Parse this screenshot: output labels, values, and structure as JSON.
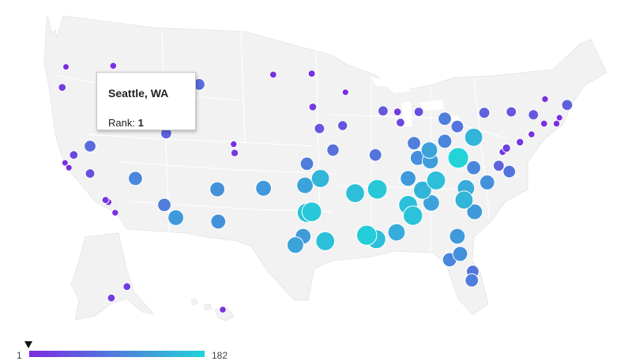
{
  "tooltip": {
    "city": "Seattle, WA",
    "rank_label": "Rank:",
    "rank_value": "1"
  },
  "legend": {
    "min": "1",
    "max": "182",
    "min_color": "#7b2be0",
    "max_color": "#22d3d8"
  },
  "colors": {
    "land": "#f2f2f2",
    "border": "#ffffff",
    "water": "#ffffff"
  },
  "markers": [
    {
      "x": -122.3,
      "y": 47.6,
      "r": 1
    },
    {
      "x": -122.7,
      "y": 45.5,
      "r": 20
    },
    {
      "x": -117.4,
      "y": 47.7,
      "r": 8
    },
    {
      "x": -111.9,
      "y": 40.8,
      "r": 60
    },
    {
      "x": -116.2,
      "y": 43.6,
      "r": 40
    },
    {
      "x": -106.6,
      "y": 35.1,
      "r": 110
    },
    {
      "x": -112.1,
      "y": 33.5,
      "r": 90
    },
    {
      "x": -110.9,
      "y": 32.2,
      "r": 120
    },
    {
      "x": -115.1,
      "y": 36.2,
      "r": 100
    },
    {
      "x": -119.8,
      "y": 39.5,
      "r": 70
    },
    {
      "x": -121.5,
      "y": 38.6,
      "r": 30
    },
    {
      "x": -122.4,
      "y": 37.8,
      "r": 2
    },
    {
      "x": -122.0,
      "y": 37.3,
      "r": 3
    },
    {
      "x": -118.2,
      "y": 34.0,
      "r": 12
    },
    {
      "x": -117.2,
      "y": 32.7,
      "r": 6
    },
    {
      "x": -117.9,
      "y": 33.8,
      "r": 9
    },
    {
      "x": -119.8,
      "y": 36.7,
      "r": 40
    },
    {
      "x": -104.9,
      "y": 39.7,
      "r": 5
    },
    {
      "x": -104.8,
      "y": 38.8,
      "r": 15
    },
    {
      "x": -108.5,
      "y": 45.8,
      "r": 70
    },
    {
      "x": -100.8,
      "y": 46.8,
      "r": 10
    },
    {
      "x": -96.8,
      "y": 46.9,
      "r": 12
    },
    {
      "x": -96.7,
      "y": 43.5,
      "r": 20
    },
    {
      "x": -93.3,
      "y": 45.0,
      "r": 3
    },
    {
      "x": -96.0,
      "y": 41.3,
      "r": 50
    },
    {
      "x": -93.6,
      "y": 41.6,
      "r": 45
    },
    {
      "x": -97.3,
      "y": 37.7,
      "r": 90
    },
    {
      "x": -94.6,
      "y": 39.1,
      "r": 75
    },
    {
      "x": -97.5,
      "y": 35.5,
      "r": 130
    },
    {
      "x": -95.9,
      "y": 36.2,
      "r": 150
    },
    {
      "x": -96.8,
      "y": 32.8,
      "r": 170
    },
    {
      "x": -97.3,
      "y": 32.7,
      "r": 165
    },
    {
      "x": -95.4,
      "y": 29.8,
      "r": 160
    },
    {
      "x": -98.5,
      "y": 29.4,
      "r": 130
    },
    {
      "x": -97.7,
      "y": 30.3,
      "r": 120
    },
    {
      "x": -101.8,
      "y": 35.2,
      "r": 120
    },
    {
      "x": -106.5,
      "y": 31.8,
      "r": 110
    },
    {
      "x": -92.3,
      "y": 34.7,
      "r": 160
    },
    {
      "x": -90.0,
      "y": 35.1,
      "r": 170
    },
    {
      "x": -90.2,
      "y": 38.6,
      "r": 80
    },
    {
      "x": -90.1,
      "y": 30.0,
      "r": 160
    },
    {
      "x": -91.1,
      "y": 30.4,
      "r": 175
    },
    {
      "x": -88.0,
      "y": 30.7,
      "r": 140
    },
    {
      "x": -86.8,
      "y": 33.5,
      "r": 160
    },
    {
      "x": -86.3,
      "y": 32.4,
      "r": 165
    },
    {
      "x": -86.8,
      "y": 36.2,
      "r": 120
    },
    {
      "x": -85.3,
      "y": 35.0,
      "r": 150
    },
    {
      "x": -83.9,
      "y": 36.0,
      "r": 160
    },
    {
      "x": -85.8,
      "y": 38.3,
      "r": 110
    },
    {
      "x": -84.5,
      "y": 38.0,
      "r": 125
    },
    {
      "x": -86.2,
      "y": 39.8,
      "r": 90
    },
    {
      "x": -87.6,
      "y": 41.9,
      "r": 30
    },
    {
      "x": -89.4,
      "y": 43.1,
      "r": 50
    },
    {
      "x": -87.9,
      "y": 43.0,
      "r": 20
    },
    {
      "x": -83.0,
      "y": 42.3,
      "r": 90
    },
    {
      "x": -85.7,
      "y": 43.0,
      "r": 40
    },
    {
      "x": -84.6,
      "y": 39.1,
      "r": 130
    },
    {
      "x": -83.0,
      "y": 40.0,
      "r": 100
    },
    {
      "x": -81.7,
      "y": 41.5,
      "r": 80
    },
    {
      "x": -80.0,
      "y": 40.4,
      "r": 150
    },
    {
      "x": -81.6,
      "y": 38.3,
      "r": 182
    },
    {
      "x": -80.0,
      "y": 37.3,
      "r": 100
    },
    {
      "x": -77.4,
      "y": 37.5,
      "r": 60
    },
    {
      "x": -76.3,
      "y": 36.9,
      "r": 80
    },
    {
      "x": -78.6,
      "y": 35.8,
      "r": 110
    },
    {
      "x": -80.8,
      "y": 35.2,
      "r": 140
    },
    {
      "x": -79.9,
      "y": 32.8,
      "r": 120
    },
    {
      "x": -81.0,
      "y": 34.0,
      "r": 150
    },
    {
      "x": -84.4,
      "y": 33.7,
      "r": 130
    },
    {
      "x": -81.7,
      "y": 30.3,
      "r": 120
    },
    {
      "x": -81.4,
      "y": 28.5,
      "r": 110
    },
    {
      "x": -82.5,
      "y": 27.9,
      "r": 100
    },
    {
      "x": -80.2,
      "y": 25.8,
      "r": 90
    },
    {
      "x": -80.1,
      "y": 26.7,
      "r": 80
    },
    {
      "x": -77.0,
      "y": 38.9,
      "r": 10
    },
    {
      "x": -76.6,
      "y": 39.3,
      "r": 25
    },
    {
      "x": -75.2,
      "y": 39.9,
      "r": 15
    },
    {
      "x": -74.0,
      "y": 40.7,
      "r": 7
    },
    {
      "x": -73.8,
      "y": 42.7,
      "r": 50
    },
    {
      "x": -76.1,
      "y": 43.0,
      "r": 50
    },
    {
      "x": -78.9,
      "y": 42.9,
      "r": 60
    },
    {
      "x": -71.1,
      "y": 42.4,
      "r": 4
    },
    {
      "x": -71.4,
      "y": 41.8,
      "r": 5
    },
    {
      "x": -72.7,
      "y": 41.8,
      "r": 10
    },
    {
      "x": -70.3,
      "y": 43.7,
      "r": 60
    },
    {
      "x": -72.6,
      "y": 44.3,
      "r": 5
    },
    {
      "x": -149.9,
      "y": 61.2,
      "r": 20
    },
    {
      "x": -147.7,
      "y": 64.8,
      "r": 20
    },
    {
      "x": -157.9,
      "y": 21.3,
      "r": 8
    }
  ]
}
